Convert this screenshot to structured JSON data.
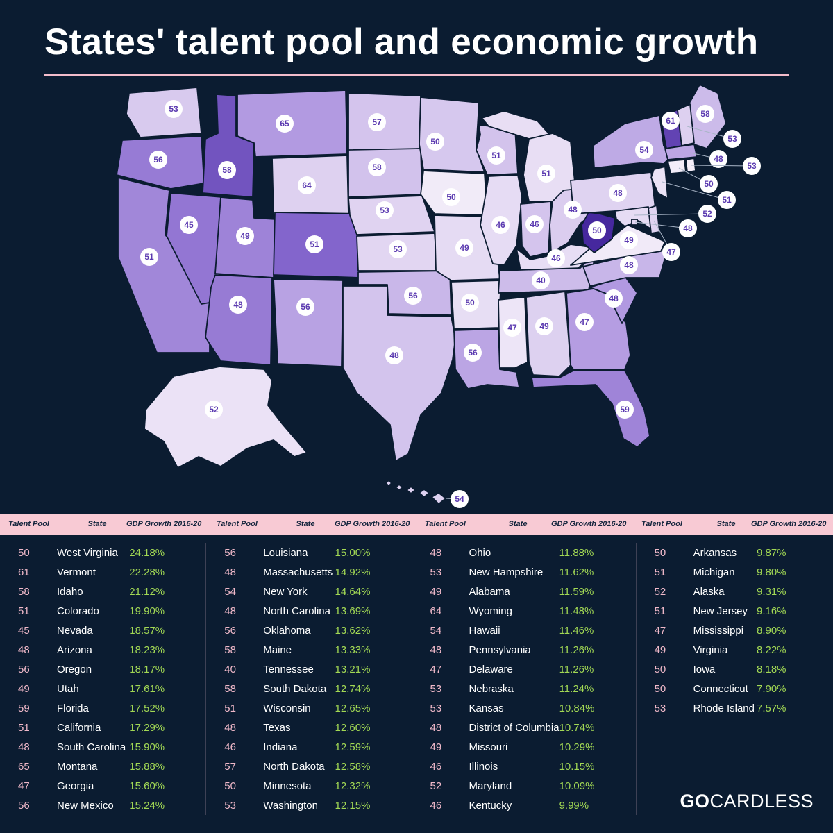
{
  "title": "States' talent pool and economic growth",
  "colors": {
    "background": "#0b1c31",
    "title_underline": "#f3bccb",
    "table_header_bg": "#f8cad4",
    "table_header_text": "#14253d",
    "talent_number_text": "#f0b9c9",
    "state_name_text": "#ffffff",
    "gdp_text": "#a2d854",
    "badge_bg": "#ffffff",
    "badge_text": "#5b3ab0",
    "map_scale_low": "#f5f0fa",
    "map_scale_high": "#46289e"
  },
  "table_headers": {
    "talent": "Talent Pool",
    "state": "State",
    "gdp": "GDP Growth 2016-20"
  },
  "footer": {
    "logo_bold": "GO",
    "logo_rest": "CARDLESS"
  },
  "chart_data": {
    "type": "heatmap",
    "title": "States' talent pool and economic growth",
    "description": "US choropleth map: state fill shade encodes GDP Growth 2016-20 (darker purple = higher growth); white circular badge on each state shows its Talent Pool score. Table lists states ranked by GDP growth descending.",
    "legend": "none shown",
    "states": [
      {
        "abbr": "WV",
        "name": "West Virginia",
        "talent_pool": 50,
        "gdp_growth_pct": 24.18
      },
      {
        "abbr": "VT",
        "name": "Vermont",
        "talent_pool": 61,
        "gdp_growth_pct": 22.28
      },
      {
        "abbr": "ID",
        "name": "Idaho",
        "talent_pool": 58,
        "gdp_growth_pct": 21.12
      },
      {
        "abbr": "CO",
        "name": "Colorado",
        "talent_pool": 51,
        "gdp_growth_pct": 19.9
      },
      {
        "abbr": "NV",
        "name": "Nevada",
        "talent_pool": 45,
        "gdp_growth_pct": 18.57
      },
      {
        "abbr": "AZ",
        "name": "Arizona",
        "talent_pool": 48,
        "gdp_growth_pct": 18.23
      },
      {
        "abbr": "OR",
        "name": "Oregon",
        "talent_pool": 56,
        "gdp_growth_pct": 18.17
      },
      {
        "abbr": "UT",
        "name": "Utah",
        "talent_pool": 49,
        "gdp_growth_pct": 17.61
      },
      {
        "abbr": "FL",
        "name": "Florida",
        "talent_pool": 59,
        "gdp_growth_pct": 17.52
      },
      {
        "abbr": "CA",
        "name": "California",
        "talent_pool": 51,
        "gdp_growth_pct": 17.29
      },
      {
        "abbr": "SC",
        "name": "South Carolina",
        "talent_pool": 48,
        "gdp_growth_pct": 15.9
      },
      {
        "abbr": "MT",
        "name": "Montana",
        "talent_pool": 65,
        "gdp_growth_pct": 15.88
      },
      {
        "abbr": "GA",
        "name": "Georgia",
        "talent_pool": 47,
        "gdp_growth_pct": 15.6
      },
      {
        "abbr": "NM",
        "name": "New Mexico",
        "talent_pool": 56,
        "gdp_growth_pct": 15.24
      },
      {
        "abbr": "LA",
        "name": "Louisiana",
        "talent_pool": 56,
        "gdp_growth_pct": 15.0
      },
      {
        "abbr": "MA",
        "name": "Massachusetts",
        "talent_pool": 48,
        "gdp_growth_pct": 14.92
      },
      {
        "abbr": "NY",
        "name": "New York",
        "talent_pool": 54,
        "gdp_growth_pct": 14.64
      },
      {
        "abbr": "NC",
        "name": "North Carolina",
        "talent_pool": 48,
        "gdp_growth_pct": 13.69
      },
      {
        "abbr": "OK",
        "name": "Oklahoma",
        "talent_pool": 56,
        "gdp_growth_pct": 13.62
      },
      {
        "abbr": "ME",
        "name": "Maine",
        "talent_pool": 58,
        "gdp_growth_pct": 13.33
      },
      {
        "abbr": "TN",
        "name": "Tennessee",
        "talent_pool": 40,
        "gdp_growth_pct": 13.21
      },
      {
        "abbr": "SD",
        "name": "South Dakota",
        "talent_pool": 58,
        "gdp_growth_pct": 12.74
      },
      {
        "abbr": "WI",
        "name": "Wisconsin",
        "talent_pool": 51,
        "gdp_growth_pct": 12.65
      },
      {
        "abbr": "TX",
        "name": "Texas",
        "talent_pool": 48,
        "gdp_growth_pct": 12.6
      },
      {
        "abbr": "IN",
        "name": "Indiana",
        "talent_pool": 46,
        "gdp_growth_pct": 12.59
      },
      {
        "abbr": "ND",
        "name": "North Dakota",
        "talent_pool": 57,
        "gdp_growth_pct": 12.58
      },
      {
        "abbr": "MN",
        "name": "Minnesota",
        "talent_pool": 50,
        "gdp_growth_pct": 12.32
      },
      {
        "abbr": "WA",
        "name": "Washington",
        "talent_pool": 53,
        "gdp_growth_pct": 12.15
      },
      {
        "abbr": "OH",
        "name": "Ohio",
        "talent_pool": 48,
        "gdp_growth_pct": 11.88
      },
      {
        "abbr": "NH",
        "name": "New Hampshire",
        "talent_pool": 53,
        "gdp_growth_pct": 11.62
      },
      {
        "abbr": "AL",
        "name": "Alabama",
        "talent_pool": 49,
        "gdp_growth_pct": 11.59
      },
      {
        "abbr": "WY",
        "name": "Wyoming",
        "talent_pool": 64,
        "gdp_growth_pct": 11.48
      },
      {
        "abbr": "HI",
        "name": "Hawaii",
        "talent_pool": 54,
        "gdp_growth_pct": 11.46
      },
      {
        "abbr": "PA",
        "name": "Pennsylvania",
        "talent_pool": 48,
        "gdp_growth_pct": 11.26
      },
      {
        "abbr": "DE",
        "name": "Delaware",
        "talent_pool": 47,
        "gdp_growth_pct": 11.26
      },
      {
        "abbr": "NE",
        "name": "Nebraska",
        "talent_pool": 53,
        "gdp_growth_pct": 11.24
      },
      {
        "abbr": "KS",
        "name": "Kansas",
        "talent_pool": 53,
        "gdp_growth_pct": 10.84
      },
      {
        "abbr": "DC",
        "name": "District of Columbia",
        "talent_pool": 48,
        "gdp_growth_pct": 10.74
      },
      {
        "abbr": "MO",
        "name": "Missouri",
        "talent_pool": 49,
        "gdp_growth_pct": 10.29
      },
      {
        "abbr": "IL",
        "name": "Illinois",
        "talent_pool": 46,
        "gdp_growth_pct": 10.15
      },
      {
        "abbr": "MD",
        "name": "Maryland",
        "talent_pool": 52,
        "gdp_growth_pct": 10.09
      },
      {
        "abbr": "KY",
        "name": "Kentucky",
        "talent_pool": 46,
        "gdp_growth_pct": 9.99
      },
      {
        "abbr": "AR",
        "name": "Arkansas",
        "talent_pool": 50,
        "gdp_growth_pct": 9.87
      },
      {
        "abbr": "MI",
        "name": "Michigan",
        "talent_pool": 51,
        "gdp_growth_pct": 9.8
      },
      {
        "abbr": "AK",
        "name": "Alaska",
        "talent_pool": 52,
        "gdp_growth_pct": 9.31
      },
      {
        "abbr": "NJ",
        "name": "New Jersey",
        "talent_pool": 51,
        "gdp_growth_pct": 9.16
      },
      {
        "abbr": "MS",
        "name": "Mississippi",
        "talent_pool": 47,
        "gdp_growth_pct": 8.9
      },
      {
        "abbr": "VA",
        "name": "Virginia",
        "talent_pool": 49,
        "gdp_growth_pct": 8.22
      },
      {
        "abbr": "IA",
        "name": "Iowa",
        "talent_pool": 50,
        "gdp_growth_pct": 8.18
      },
      {
        "abbr": "CT",
        "name": "Connecticut",
        "talent_pool": 50,
        "gdp_growth_pct": 7.9
      },
      {
        "abbr": "RI",
        "name": "Rhode Island",
        "talent_pool": 53,
        "gdp_growth_pct": 7.57
      }
    ]
  }
}
